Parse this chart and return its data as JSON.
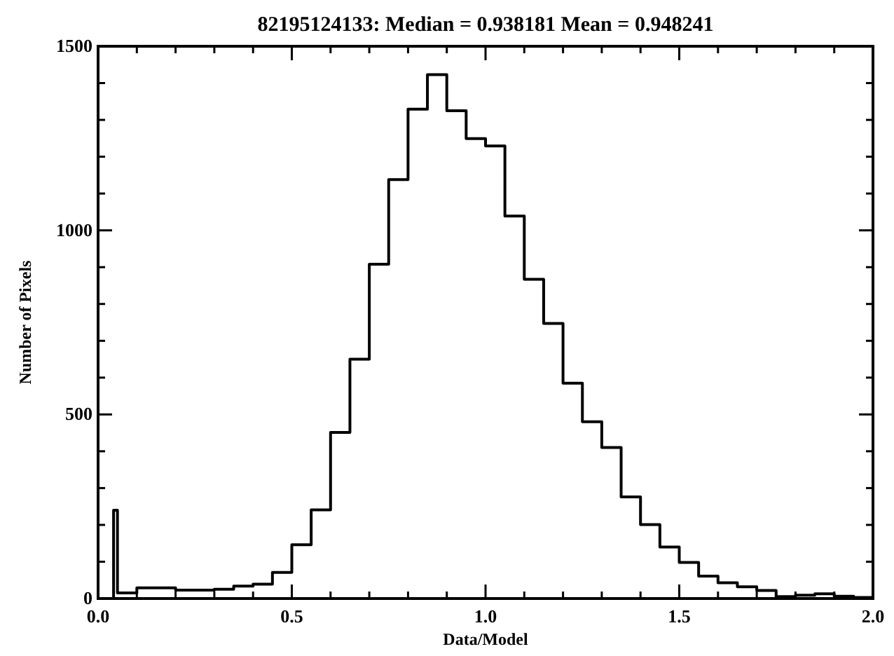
{
  "chart_data": {
    "type": "histogram",
    "title": "82195124133: Median = 0.938181 Mean = 0.948241",
    "xlabel": "Data/Model",
    "ylabel": "Number of Pixels",
    "color": "#000000",
    "bins": [
      0.04,
      0.05,
      0.1,
      0.15,
      0.2,
      0.25,
      0.3,
      0.35,
      0.4,
      0.45,
      0.5,
      0.55,
      0.6,
      0.65,
      0.7,
      0.75,
      0.8,
      0.85,
      0.9,
      0.95,
      1.0,
      1.05,
      1.1,
      1.15,
      1.2,
      1.25,
      1.3,
      1.35,
      1.4,
      1.45,
      1.5,
      1.55,
      1.6,
      1.65,
      1.7,
      1.75,
      1.8,
      1.85,
      1.9,
      1.95,
      2.0
    ],
    "values": [
      240,
      15,
      29,
      29,
      23,
      23,
      25,
      34,
      39,
      71,
      146,
      241,
      451,
      650,
      908,
      1138,
      1329,
      1423,
      1325,
      1249,
      1229,
      1039,
      867,
      747,
      585,
      480,
      410,
      276,
      201,
      140,
      98,
      61,
      43,
      32,
      22,
      5,
      9,
      13,
      6,
      3
    ],
    "xlim": [
      0,
      2
    ],
    "ylim": [
      0,
      1500
    ],
    "xticks": [
      {
        "value": 0,
        "label": "0.0"
      },
      {
        "value": 0.1,
        "label": null
      },
      {
        "value": 0.2,
        "label": null
      },
      {
        "value": 0.3,
        "label": null
      },
      {
        "value": 0.4,
        "label": null
      },
      {
        "value": 0.5,
        "label": "0.5"
      },
      {
        "value": 0.6,
        "label": null
      },
      {
        "value": 0.7,
        "label": null
      },
      {
        "value": 0.8,
        "label": null
      },
      {
        "value": 0.9,
        "label": null
      },
      {
        "value": 1,
        "label": "1.0"
      },
      {
        "value": 1.1,
        "label": null
      },
      {
        "value": 1.2,
        "label": null
      },
      {
        "value": 1.3,
        "label": null
      },
      {
        "value": 1.4,
        "label": null
      },
      {
        "value": 1.5,
        "label": "1.5"
      },
      {
        "value": 1.6,
        "label": null
      },
      {
        "value": 1.7,
        "label": null
      },
      {
        "value": 1.8,
        "label": null
      },
      {
        "value": 1.9,
        "label": null
      },
      {
        "value": 2,
        "label": "2.0"
      }
    ],
    "yticks": [
      0,
      {
        "value": 100,
        "label": null
      },
      {
        "value": 200,
        "label": null
      },
      {
        "value": 300,
        "label": null
      },
      {
        "value": 400,
        "label": null
      },
      500,
      {
        "value": 600,
        "label": null
      },
      {
        "value": 700,
        "label": null
      },
      {
        "value": 800,
        "label": null
      },
      {
        "value": 900,
        "label": null
      },
      1000,
      {
        "value": 1100,
        "label": null
      },
      {
        "value": 1200,
        "label": null
      },
      {
        "value": 1300,
        "label": null
      },
      {
        "value": 1400,
        "label": null
      },
      1500
    ]
  }
}
